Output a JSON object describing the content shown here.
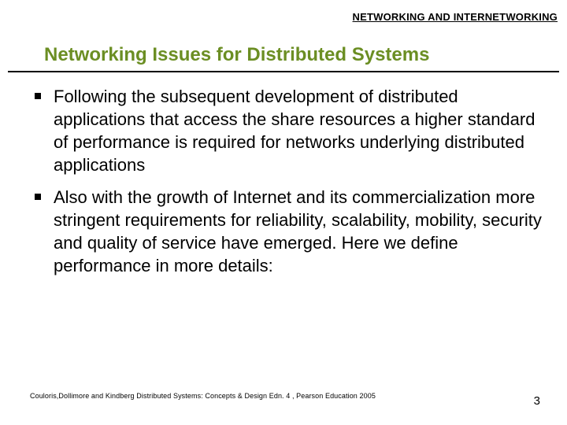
{
  "header": {
    "label": "NETWORKING AND INTERNETWORKING"
  },
  "title": "Networking Issues for Distributed Systems",
  "bullets": [
    "Following the subsequent development of distributed applications that access the share resources a higher standard of performance is required for networks underlying distributed applications",
    "Also with the growth of Internet and its commercialization more stringent requirements for reliability, scalability, mobility, security and quality of service have emerged. Here we define performance in more details:"
  ],
  "footer": {
    "citation": "Couloris,Dollimore and Kindberg  Distributed Systems: Concepts & Design  Edn. 4 , Pearson Education 2005",
    "page_number": "3"
  },
  "colors": {
    "title_color": "#6b8e23",
    "text_color": "#000000",
    "background": "#ffffff"
  }
}
